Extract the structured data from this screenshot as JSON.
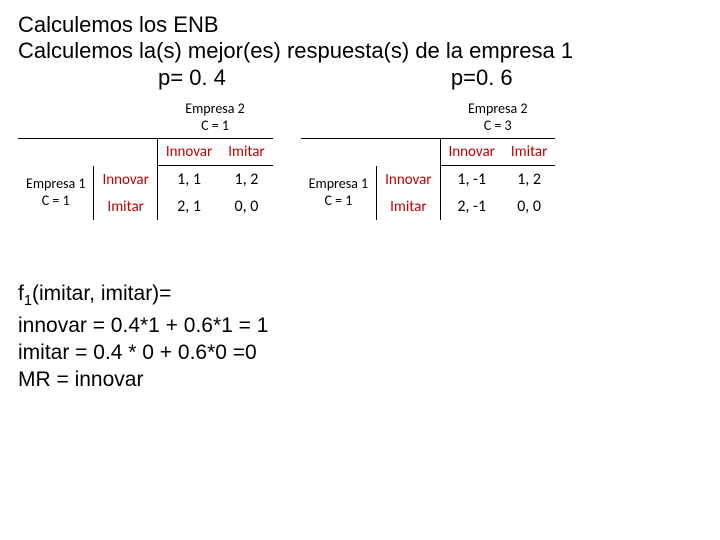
{
  "title": {
    "line1": "Calculemos los ENB",
    "line2": "Calculemos la(s)  mejor(es) respuesta(s) de la empresa 1"
  },
  "p_labels": {
    "left": "p= 0. 4",
    "right": "p=0. 6"
  },
  "labels": {
    "empresa2": "Empresa 2",
    "empresa1": "Empresa 1",
    "c_eq_1": "C = 1",
    "c_eq_3": "C = 3",
    "innovar": "Innovar",
    "imitar": "Imitar"
  },
  "left_table": {
    "cells": {
      "r0c0": "1, 1",
      "r0c1": "1, 2",
      "r1c0": "2, 1",
      "r1c1": "0, 0"
    }
  },
  "right_table": {
    "cells": {
      "r0c0": "1, -1",
      "r0c1": "1, 2",
      "r1c0": "2, -1",
      "r1c1": "0, 0"
    }
  },
  "bottom": {
    "l1_pre": "f",
    "l1_sub": "1",
    "l1_post": "(imitar, imitar)=",
    "l2": "innovar = 0.4*1 + 0.6*1 = 1",
    "l3": "imitar = 0.4 * 0 + 0.6*0 =0",
    "l4": "MR = innovar"
  },
  "colors": {
    "accent": "#c00000",
    "text": "#000000",
    "background": "#ffffff"
  }
}
